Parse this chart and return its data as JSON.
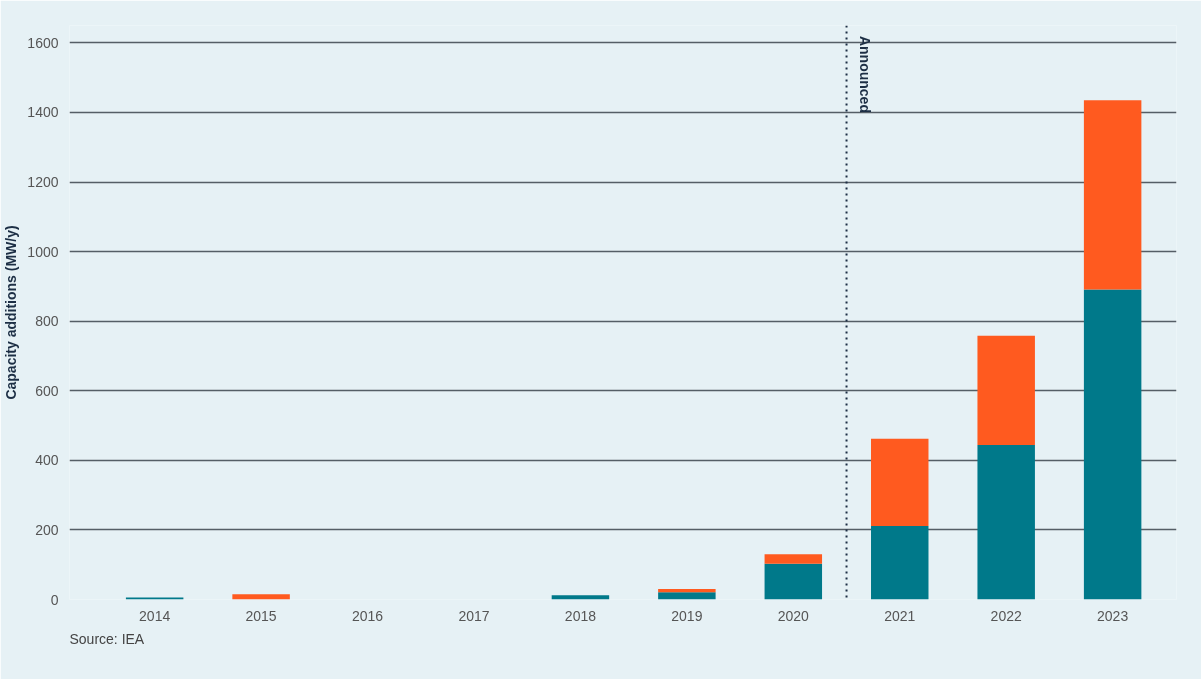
{
  "chart_data": {
    "type": "bar",
    "stacked": true,
    "ylabel": "Capacity additions (MW/y)",
    "categories": [
      "2014",
      "2015",
      "2016",
      "2017",
      "2018",
      "2019",
      "2020",
      "2021",
      "2022",
      "2023"
    ],
    "series": [
      {
        "color": "#00798a",
        "values": [
          6,
          null,
          null,
          null,
          12,
          21,
          103,
          211,
          444,
          891
        ]
      },
      {
        "color": "#ff5a1f",
        "values": [
          0,
          15,
          0,
          0,
          0,
          9,
          27,
          251,
          314,
          544
        ]
      }
    ],
    "ylim": [
      0,
      1650
    ],
    "yticks": [
      0,
      200,
      400,
      600,
      800,
      1000,
      1200,
      1400,
      1600
    ],
    "grid": "y",
    "ref_lines": [
      {
        "axis": "x",
        "value": "2020",
        "label": "Announced",
        "color": "#1d2f45",
        "line_style": "dotted"
      }
    ],
    "annotations": [
      "Source: IEA"
    ]
  }
}
